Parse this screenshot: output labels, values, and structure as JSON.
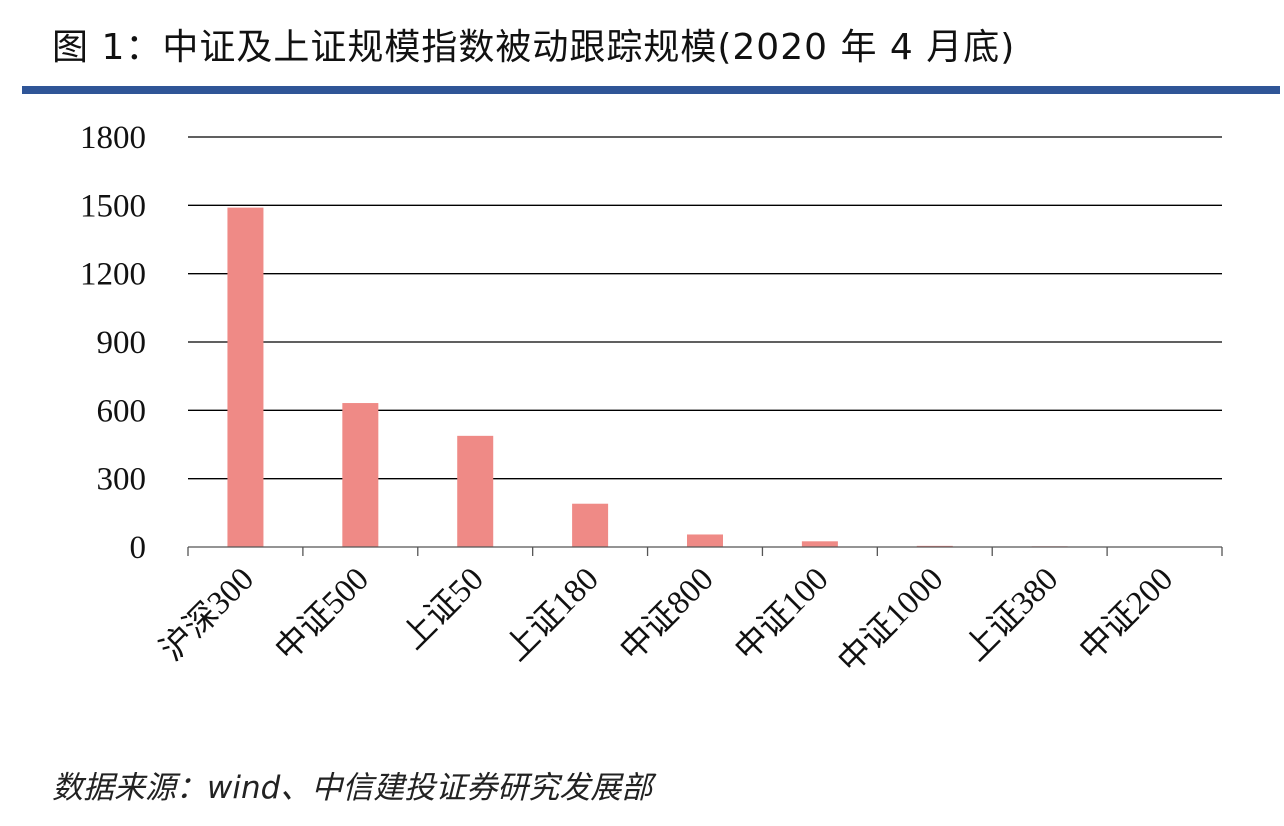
{
  "figure": {
    "title": "图 1：中证及上证规模指数被动跟踪规模(2020 年 4 月底)",
    "source": "数据来源：wind、中信建投证券研究发展部"
  },
  "colors": {
    "bar": "#ef8a86",
    "title_rule": "#2f5597",
    "grid": "#000000"
  },
  "chart_data": {
    "type": "bar",
    "title": "图 1：中证及上证规模指数被动跟踪规模(2020 年 4 月底)",
    "xlabel": "",
    "ylabel": "",
    "ylim": [
      0,
      1800
    ],
    "yticks": [
      0,
      300,
      600,
      900,
      1200,
      1500,
      1800
    ],
    "grid": true,
    "legend": "none",
    "categories": [
      "沪深300",
      "中证500",
      "上证50",
      "上证180",
      "中证800",
      "中证100",
      "中证1000",
      "上证380",
      "中证200"
    ],
    "values": [
      1490,
      632,
      488,
      190,
      55,
      25,
      5,
      3,
      2
    ]
  }
}
